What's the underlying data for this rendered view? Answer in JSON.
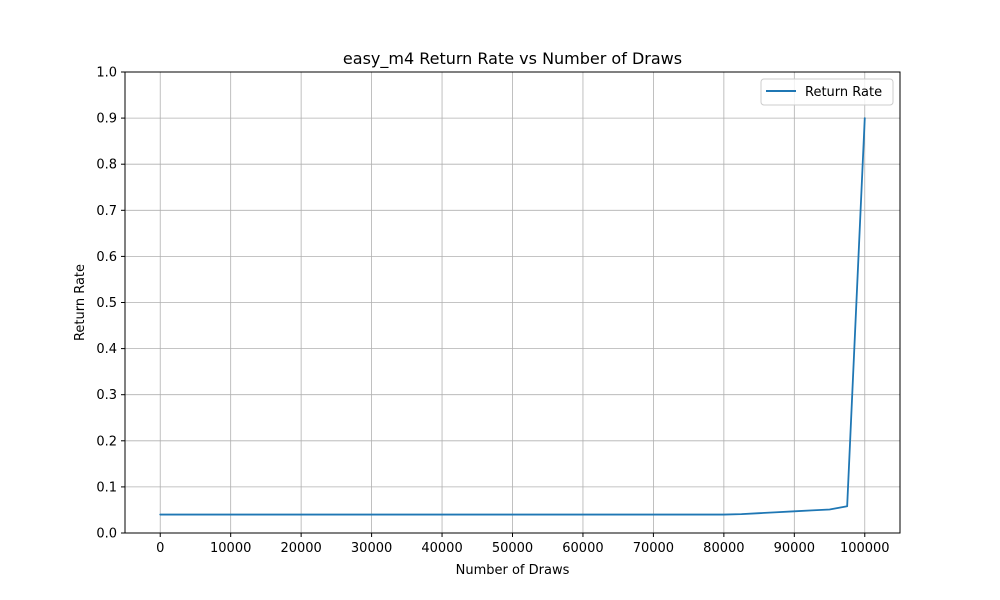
{
  "chart_data": {
    "type": "line",
    "title": "easy_m4 Return Rate vs Number of Draws",
    "xlabel": "Number of Draws",
    "ylabel": "Return Rate",
    "xlim": [
      -5000,
      105000
    ],
    "ylim": [
      0.0,
      1.0
    ],
    "xticks": [
      0,
      10000,
      20000,
      30000,
      40000,
      50000,
      60000,
      70000,
      80000,
      90000,
      100000
    ],
    "xtick_labels": [
      "0",
      "10000",
      "20000",
      "30000",
      "40000",
      "50000",
      "60000",
      "70000",
      "80000",
      "90000",
      "100000"
    ],
    "yticks": [
      0.0,
      0.1,
      0.2,
      0.3,
      0.4,
      0.5,
      0.6,
      0.7,
      0.8,
      0.9,
      1.0
    ],
    "ytick_labels": [
      "0.0",
      "0.1",
      "0.2",
      "0.3",
      "0.4",
      "0.5",
      "0.6",
      "0.7",
      "0.8",
      "0.9",
      "1.0"
    ],
    "grid": true,
    "legend_position": "top-right",
    "series": [
      {
        "name": "Return Rate",
        "color": "#1f77b4",
        "x": [
          0,
          10000,
          20000,
          30000,
          40000,
          50000,
          60000,
          70000,
          80000,
          82500,
          85000,
          87500,
          90000,
          92500,
          95000,
          97500,
          100000
        ],
        "y": [
          0.04,
          0.04,
          0.04,
          0.04,
          0.04,
          0.04,
          0.04,
          0.04,
          0.04,
          0.041,
          0.043,
          0.045,
          0.047,
          0.049,
          0.051,
          0.058,
          0.9
        ]
      }
    ]
  }
}
